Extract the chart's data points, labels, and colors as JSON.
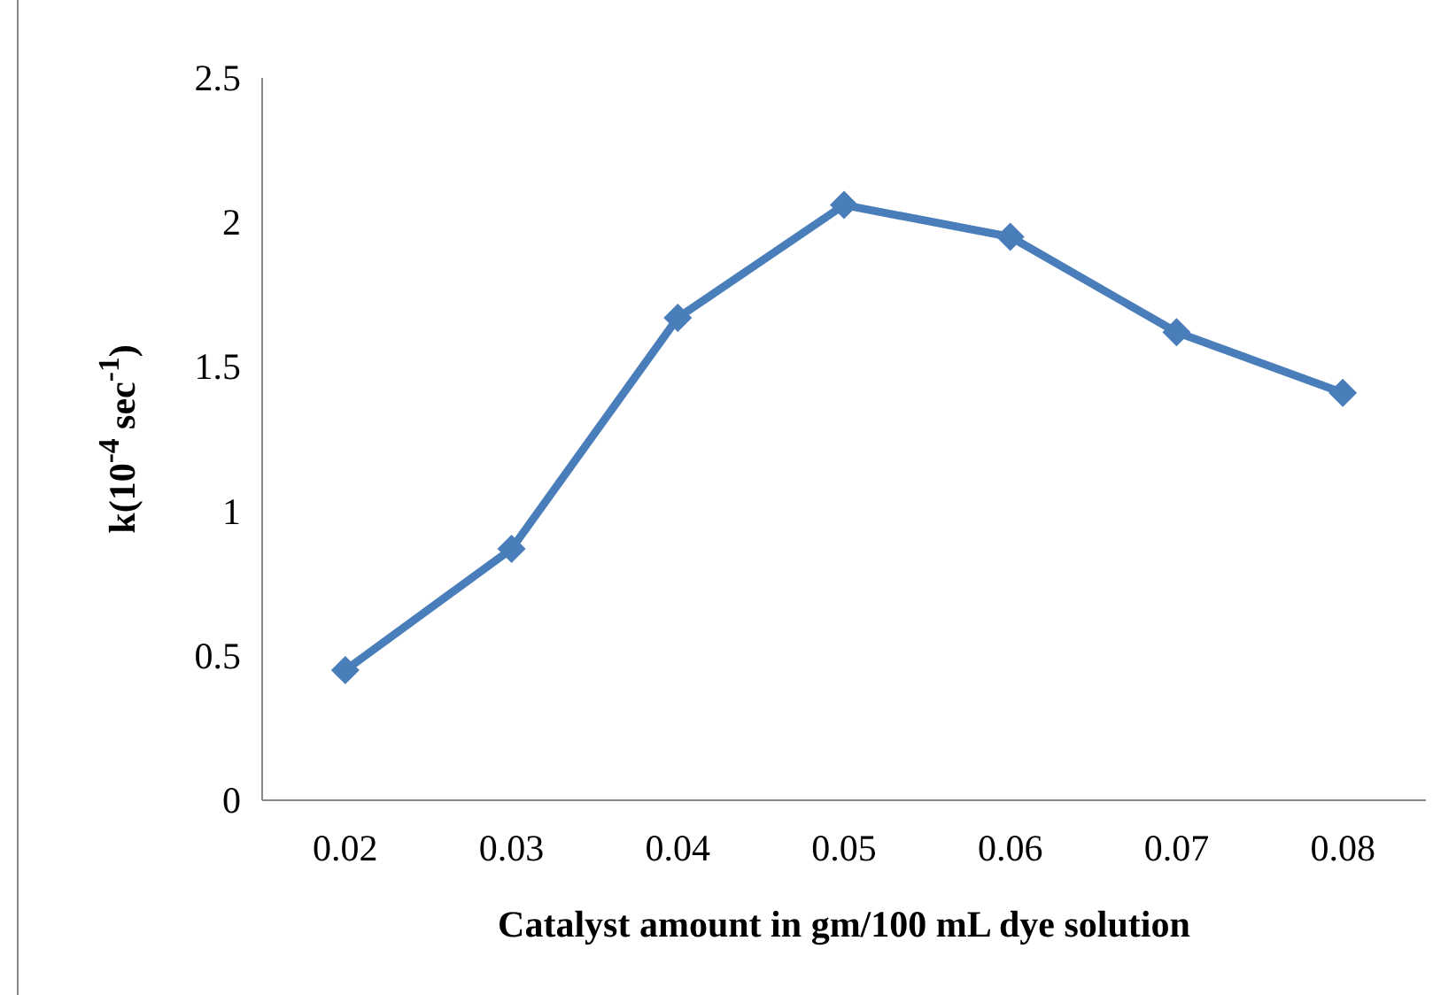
{
  "chart_data": {
    "type": "line",
    "xlabel": "Catalyst amount in gm/100 mL dye solution",
    "ylabel": "k(10$^{-4}$ sec$^{-1}$)",
    "categories": [
      "0.02",
      "0.03",
      "0.04",
      "0.05",
      "0.06",
      "0.07",
      "0.08"
    ],
    "series": [
      {
        "color": "#4a7ebb",
        "values": [
          0.45,
          0.87,
          1.67,
          2.06,
          1.95,
          1.62,
          1.41
        ]
      }
    ],
    "ylim": [
      0,
      2.5
    ],
    "yticks": [
      0,
      0.5,
      1,
      1.5,
      2,
      2.5
    ],
    "grid": false,
    "marker": "diamond",
    "line_style": "solid"
  }
}
